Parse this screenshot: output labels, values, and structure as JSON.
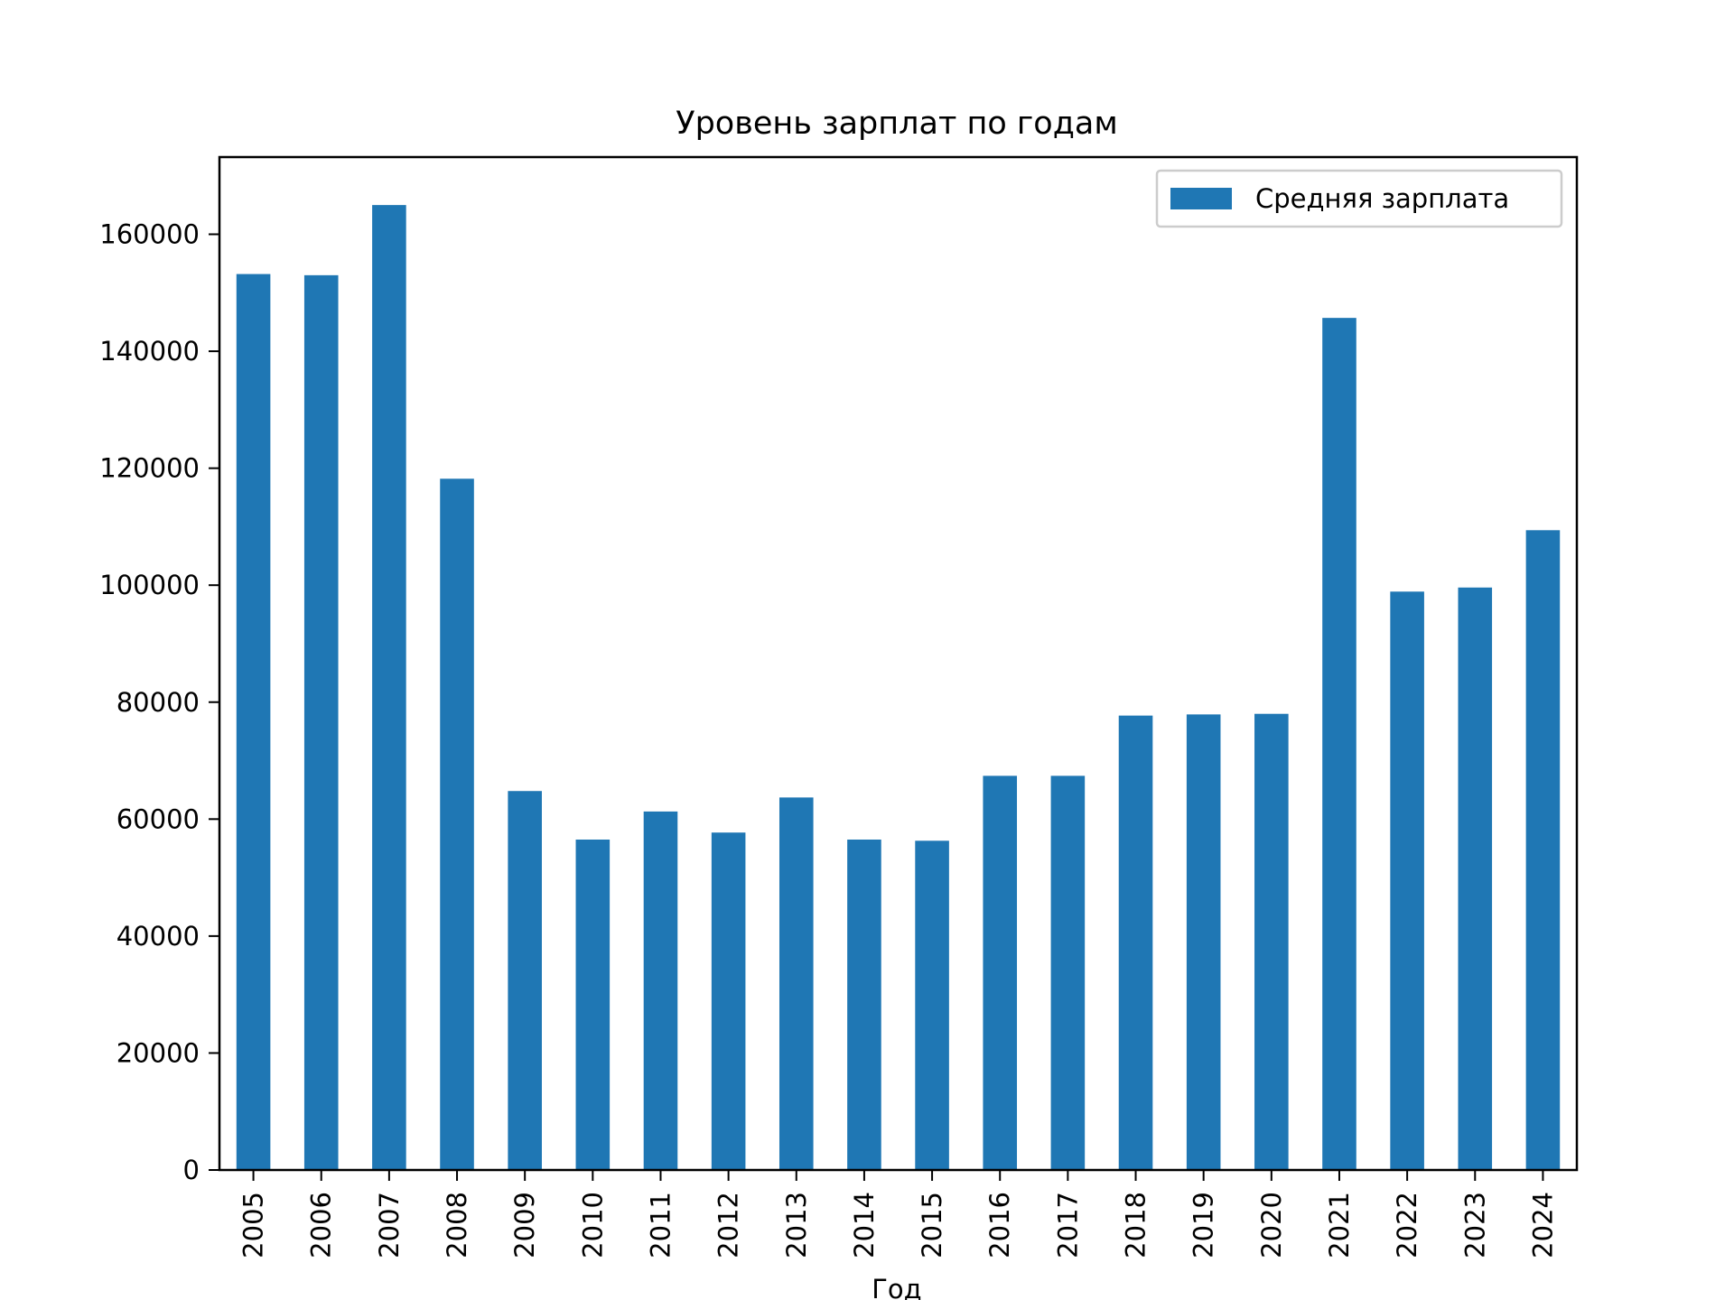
{
  "chart_data": {
    "type": "bar",
    "title": "Уровень зарплат по годам",
    "xlabel": "Год",
    "ylabel": "",
    "categories": [
      "2005",
      "2006",
      "2007",
      "2008",
      "2009",
      "2010",
      "2011",
      "2012",
      "2013",
      "2014",
      "2015",
      "2016",
      "2017",
      "2018",
      "2019",
      "2020",
      "2021",
      "2022",
      "2023",
      "2024"
    ],
    "series": [
      {
        "name": "Средняя зарплата",
        "color": "#1f77b4",
        "values": [
          153200,
          153000,
          165000,
          118200,
          64800,
          56500,
          61300,
          57700,
          63700,
          56500,
          56300,
          67400,
          67400,
          77700,
          77900,
          78000,
          145700,
          98900,
          99600,
          109400
        ]
      }
    ],
    "ylim": [
      0,
      173200
    ],
    "yticks": [
      0,
      20000,
      40000,
      60000,
      80000,
      100000,
      120000,
      140000,
      160000
    ],
    "ytick_labels": [
      "0",
      "20000",
      "40000",
      "60000",
      "80000",
      "100000",
      "120000",
      "140000",
      "160000"
    ],
    "legend": "top-right",
    "grid": false
  }
}
